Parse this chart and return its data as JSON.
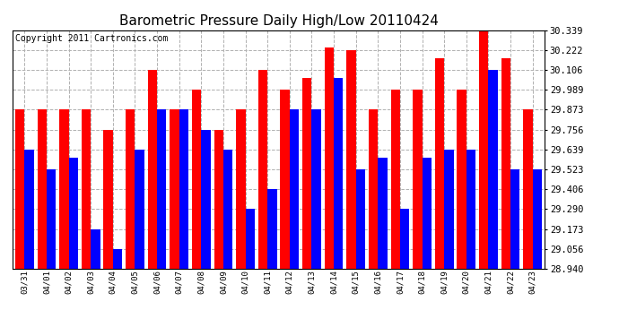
{
  "title": "Barometric Pressure Daily High/Low 20110424",
  "copyright": "Copyright 2011 Cartronics.com",
  "categories": [
    "03/31",
    "04/01",
    "04/02",
    "04/03",
    "04/04",
    "04/05",
    "04/06",
    "04/07",
    "04/08",
    "04/09",
    "04/10",
    "04/11",
    "04/12",
    "04/13",
    "04/14",
    "04/15",
    "04/16",
    "04/17",
    "04/18",
    "04/19",
    "04/20",
    "04/21",
    "04/22",
    "04/23"
  ],
  "highs": [
    29.873,
    29.873,
    29.873,
    29.873,
    29.756,
    29.873,
    30.106,
    29.873,
    29.989,
    29.756,
    29.873,
    30.106,
    29.989,
    30.057,
    30.24,
    30.222,
    29.873,
    29.989,
    29.989,
    30.173,
    29.989,
    30.339,
    30.173,
    29.873
  ],
  "lows": [
    29.639,
    29.523,
    29.59,
    29.173,
    29.056,
    29.639,
    29.873,
    29.873,
    29.756,
    29.639,
    29.29,
    29.406,
    29.873,
    29.873,
    30.057,
    29.523,
    29.59,
    29.29,
    29.59,
    29.64,
    29.64,
    30.106,
    29.523,
    29.523
  ],
  "ylim_min": 28.94,
  "ylim_max": 30.339,
  "yticks": [
    28.94,
    29.056,
    29.173,
    29.29,
    29.406,
    29.523,
    29.639,
    29.756,
    29.873,
    29.989,
    30.106,
    30.222,
    30.339
  ],
  "bar_color_high": "#ff0000",
  "bar_color_low": "#0000ff",
  "background_color": "#ffffff",
  "grid_color": "#b0b0b0",
  "title_fontsize": 11,
  "copyright_fontsize": 7,
  "bar_width": 0.42,
  "figwidth": 6.9,
  "figheight": 3.75,
  "dpi": 100
}
